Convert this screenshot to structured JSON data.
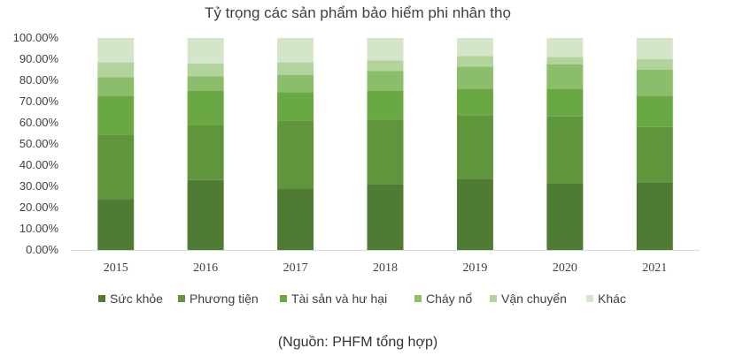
{
  "chart_data": {
    "type": "bar",
    "stacked": true,
    "percent": true,
    "title": "Tỷ trọng các sản phẩm bảo hiểm phi nhân thọ",
    "xlabel": "",
    "ylabel": "",
    "categories": [
      "2015",
      "2016",
      "2017",
      "2018",
      "2019",
      "2020",
      "2021"
    ],
    "ylim": [
      0,
      100
    ],
    "yticks": [
      "0.00%",
      "10.00%",
      "20.00%",
      "30.00%",
      "40.00%",
      "50.00%",
      "60.00%",
      "70.00%",
      "80.00%",
      "90.00%",
      "100.00%"
    ],
    "grid": false,
    "legend": "bottom",
    "series": [
      {
        "name": "Sức khỏe",
        "color": "#4f7b33",
        "values": [
          24,
          33,
          29,
          31,
          33.5,
          31.5,
          32
        ]
      },
      {
        "name": "Phương tiện",
        "color": "#5f963b",
        "values": [
          30.5,
          26,
          32,
          30.5,
          30,
          31.5,
          26
        ]
      },
      {
        "name": "Tài sản và hư hại",
        "color": "#6aa843",
        "values": [
          18,
          16,
          13.5,
          13.5,
          12.5,
          13,
          14.5
        ]
      },
      {
        "name": "Cháy nổ",
        "color": "#8bbd6a",
        "values": [
          9,
          7,
          8,
          9.5,
          10.5,
          11.5,
          12.5
        ]
      },
      {
        "name": "Vận chuyển",
        "color": "#b3d39d",
        "values": [
          7,
          6,
          6,
          5,
          5,
          3.5,
          5
        ]
      },
      {
        "name": "Khác",
        "color": "#d5e5c9",
        "values": [
          11.5,
          12,
          11.5,
          10.5,
          8.5,
          9,
          10
        ]
      }
    ],
    "source": "(Nguồn: PHFM tổng hợp)"
  }
}
